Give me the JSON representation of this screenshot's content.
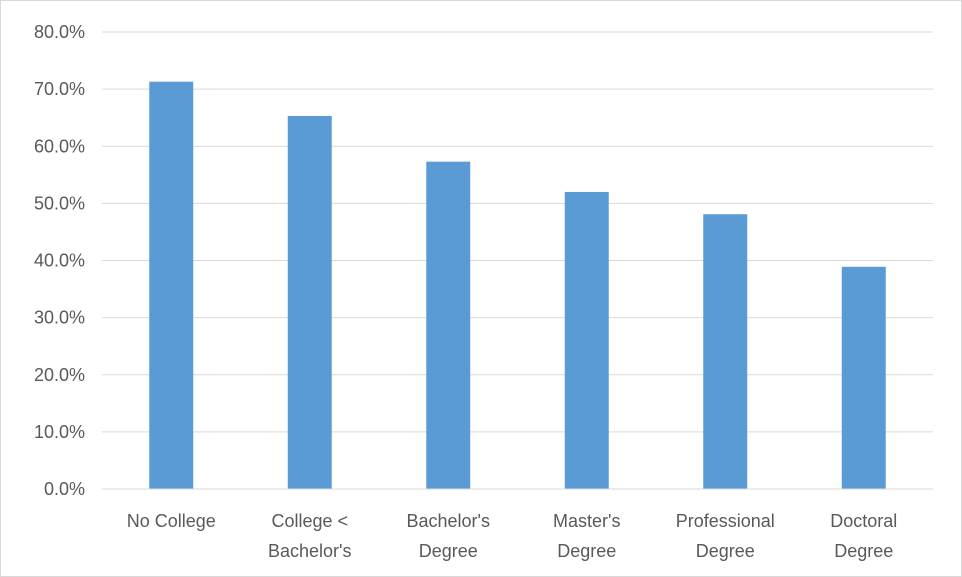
{
  "chart_data": {
    "type": "bar",
    "categories": [
      [
        "No College"
      ],
      [
        "College <",
        "Bachelor's"
      ],
      [
        "Bachelor's",
        "Degree"
      ],
      [
        "Master's",
        "Degree"
      ],
      [
        "Professional",
        "Degree"
      ],
      [
        "Doctoral",
        "Degree"
      ]
    ],
    "values": [
      71.3,
      65.3,
      57.3,
      52.0,
      48.1,
      38.9
    ],
    "y_ticks": [
      "0.0%",
      "10.0%",
      "20.0%",
      "30.0%",
      "40.0%",
      "50.0%",
      "60.0%",
      "70.0%",
      "80.0%"
    ],
    "ylim": [
      0,
      80
    ],
    "grid": true,
    "legend": "none",
    "title": "",
    "xlabel": "",
    "ylabel": "",
    "colors": {
      "bar": "#5b9bd5",
      "gridline": "#d9d9d9",
      "axis_line": "#d9d9d9",
      "text": "#595959"
    }
  }
}
